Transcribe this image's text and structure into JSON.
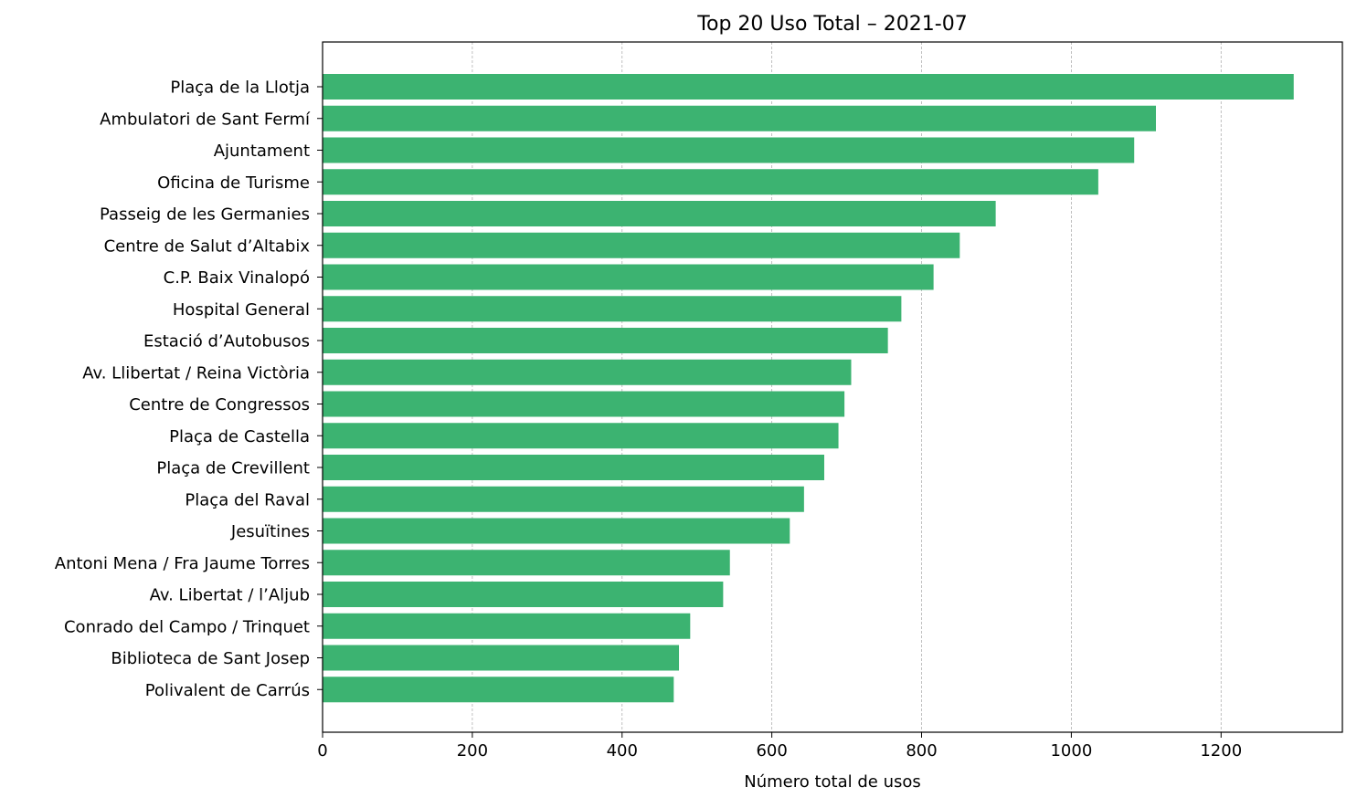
{
  "chart_data": {
    "type": "bar",
    "orientation": "horizontal",
    "title": "Top 20 Uso Total – 2021-07",
    "xlabel": "Número total de usos",
    "ylabel": "",
    "xlim": [
      0,
      1362
    ],
    "xticks": [
      0,
      200,
      400,
      600,
      800,
      1000,
      1200
    ],
    "grid": "x-dashed",
    "bar_color": "#3cb371",
    "categories": [
      "Plaça de la Llotja",
      "Ambulatori de Sant Fermí",
      "Ajuntament",
      "Oficina de Turisme",
      "Passeig de les Germanies",
      "Centre de Salut d’Altabix",
      "C.P. Baix Vinalopó",
      "Hospital General",
      "Estació d’Autobusos",
      "Av. Llibertat / Reina Victòria",
      "Centre de Congressos",
      "Plaça de Castella",
      "Plaça de Crevillent",
      "Plaça del Raval",
      "Jesuïtines",
      "Antoni Mena / Fra Jaume Torres",
      "Av. Libertat / l’Aljub",
      "Conrado del Campo / Trinquet",
      "Biblioteca de Sant Josep",
      "Polivalent de Carrús"
    ],
    "values": [
      1297,
      1113,
      1084,
      1036,
      899,
      851,
      816,
      773,
      755,
      706,
      697,
      689,
      670,
      643,
      624,
      544,
      535,
      491,
      476,
      469
    ]
  }
}
